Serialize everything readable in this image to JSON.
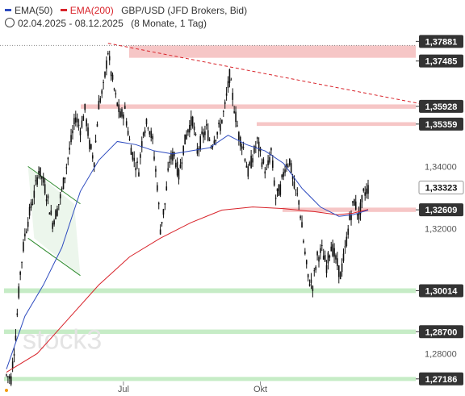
{
  "legend": {
    "ema50_label": "EMA(50)",
    "ema200_label": "EMA(200)",
    "instrument": "GBP/USD (JFD Brokers, Bid)",
    "range": "02.04.2025 - 08.12.2025",
    "range_note": "(8 Monate, 1 Tag)"
  },
  "colors": {
    "ema50": "#2e4bbf",
    "ema200": "#d8232a",
    "resistance_zone": "#f6c6c6",
    "support_zone": "#c6ecc6",
    "candle": "#111111",
    "trend_channel": "#2e8b2e",
    "downtrend_line": "#d8232a",
    "label_box": "#333333"
  },
  "chart_data": {
    "type": "candlestick",
    "ylim": [
      1.27,
      1.382
    ],
    "x_tick_labels": [
      "Jul",
      "Okt"
    ],
    "y_tick_labels": [
      {
        "value": 1.34,
        "label": "1,34000"
      },
      {
        "value": 1.32,
        "label": "1,32000"
      },
      {
        "value": 1.28,
        "label": "1,28000"
      }
    ],
    "resistance_levels": [
      {
        "value": 1.37881,
        "label": "1,37881"
      },
      {
        "value": 1.37485,
        "label": "1,37485"
      },
      {
        "value": 1.35928,
        "label": "1,35928"
      },
      {
        "value": 1.35359,
        "label": "1,35359"
      },
      {
        "value": 1.32609,
        "label": "1,32609"
      }
    ],
    "support_levels": [
      {
        "value": 1.30014,
        "label": "1,30014"
      },
      {
        "value": 1.287,
        "label": "1,28700"
      },
      {
        "value": 1.27186,
        "label": "1,27186"
      }
    ],
    "current_price": {
      "value": 1.33323,
      "label": "1,33323"
    },
    "watermark": "stock3",
    "price_path": [
      [
        0,
        1.273
      ],
      [
        3,
        1.272
      ],
      [
        6,
        1.286
      ],
      [
        9,
        1.306
      ],
      [
        12,
        1.318
      ],
      [
        15,
        1.325
      ],
      [
        18,
        1.331
      ],
      [
        21,
        1.339
      ],
      [
        24,
        1.335
      ],
      [
        27,
        1.329
      ],
      [
        30,
        1.322
      ],
      [
        33,
        1.326
      ],
      [
        36,
        1.332
      ],
      [
        39,
        1.34
      ],
      [
        42,
        1.348
      ],
      [
        45,
        1.356
      ],
      [
        48,
        1.352
      ],
      [
        51,
        1.358
      ],
      [
        54,
        1.347
      ],
      [
        57,
        1.342
      ],
      [
        60,
        1.36
      ],
      [
        63,
        1.365
      ],
      [
        66,
        1.377
      ],
      [
        68,
        1.37
      ],
      [
        71,
        1.362
      ],
      [
        74,
        1.356
      ],
      [
        77,
        1.358
      ],
      [
        80,
        1.348
      ],
      [
        83,
        1.342
      ],
      [
        86,
        1.339
      ],
      [
        89,
        1.352
      ],
      [
        92,
        1.354
      ],
      [
        95,
        1.348
      ],
      [
        98,
        1.334
      ],
      [
        100,
        1.32
      ],
      [
        103,
        1.328
      ],
      [
        106,
        1.342
      ],
      [
        109,
        1.344
      ],
      [
        112,
        1.337
      ],
      [
        115,
        1.346
      ],
      [
        118,
        1.352
      ],
      [
        121,
        1.355
      ],
      [
        124,
        1.345
      ],
      [
        127,
        1.349
      ],
      [
        130,
        1.352
      ],
      [
        133,
        1.347
      ],
      [
        136,
        1.35
      ],
      [
        139,
        1.353
      ],
      [
        142,
        1.359
      ],
      [
        145,
        1.369
      ],
      [
        148,
        1.359
      ],
      [
        151,
        1.35
      ],
      [
        154,
        1.346
      ],
      [
        157,
        1.338
      ],
      [
        160,
        1.343
      ],
      [
        163,
        1.348
      ],
      [
        166,
        1.342
      ],
      [
        169,
        1.338
      ],
      [
        172,
        1.345
      ],
      [
        175,
        1.33
      ],
      [
        178,
        1.333
      ],
      [
        181,
        1.34
      ],
      [
        184,
        1.342
      ],
      [
        187,
        1.333
      ],
      [
        190,
        1.329
      ],
      [
        193,
        1.316
      ],
      [
        196,
        1.304
      ],
      [
        199,
        1.302
      ],
      [
        202,
        1.311
      ],
      [
        205,
        1.313
      ],
      [
        208,
        1.308
      ],
      [
        211,
        1.315
      ],
      [
        214,
        1.31
      ],
      [
        217,
        1.305
      ],
      [
        220,
        1.313
      ],
      [
        223,
        1.323
      ],
      [
        226,
        1.329
      ],
      [
        229,
        1.324
      ],
      [
        232,
        1.331
      ],
      [
        235,
        1.333
      ]
    ],
    "ema50": [
      [
        0,
        1.275
      ],
      [
        12,
        1.292
      ],
      [
        24,
        1.302
      ],
      [
        36,
        1.314
      ],
      [
        48,
        1.332
      ],
      [
        60,
        1.342
      ],
      [
        72,
        1.348
      ],
      [
        84,
        1.347
      ],
      [
        96,
        1.345
      ],
      [
        108,
        1.344
      ],
      [
        120,
        1.345
      ],
      [
        132,
        1.346
      ],
      [
        144,
        1.35
      ],
      [
        156,
        1.347
      ],
      [
        168,
        1.345
      ],
      [
        180,
        1.341
      ],
      [
        192,
        1.333
      ],
      [
        204,
        1.327
      ],
      [
        216,
        1.324
      ],
      [
        225,
        1.3245
      ],
      [
        235,
        1.326
      ]
    ],
    "ema200": [
      [
        0,
        1.274
      ],
      [
        20,
        1.28
      ],
      [
        40,
        1.291
      ],
      [
        60,
        1.302
      ],
      [
        80,
        1.311
      ],
      [
        100,
        1.317
      ],
      [
        120,
        1.322
      ],
      [
        140,
        1.326
      ],
      [
        160,
        1.327
      ],
      [
        180,
        1.3265
      ],
      [
        200,
        1.3255
      ],
      [
        215,
        1.3245
      ],
      [
        225,
        1.325
      ],
      [
        235,
        1.3262
      ]
    ]
  }
}
